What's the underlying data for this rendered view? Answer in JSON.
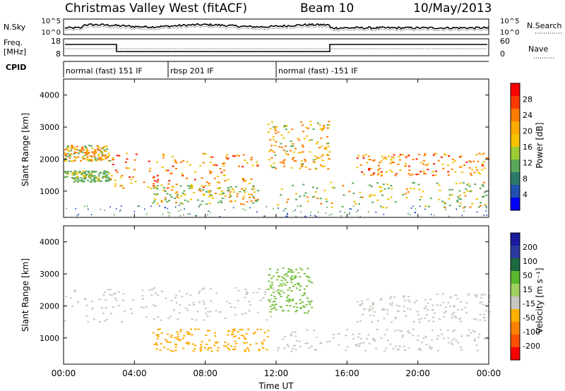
{
  "header": {
    "station": "Christmas Valley West (fitACF)",
    "beam": "Beam 10",
    "date": "10/May/2013"
  },
  "noise_panel": {
    "left_label": "N.Sky",
    "right_label": "N.Search",
    "left_ticks": [
      "10^5",
      "10^0"
    ],
    "right_ticks": [
      "10^5",
      "10^0"
    ]
  },
  "freq_panel": {
    "left_label_1": "Freq.",
    "left_label_2": "[MHz]",
    "right_label": "Nave",
    "left_ticks": [
      "18",
      "8"
    ],
    "right_ticks": [
      "60",
      "0"
    ]
  },
  "cpid": {
    "label": "CPID",
    "segments": [
      {
        "start_h": 0.0,
        "end_h": 5.9,
        "text": "normal (fast) 151 IF"
      },
      {
        "start_h": 5.9,
        "end_h": 12.0,
        "text": "rbsp 201 IF"
      },
      {
        "start_h": 12.0,
        "end_h": 24.0,
        "text": "normal (fast) -151 IF"
      }
    ]
  },
  "power_panel": {
    "ylabel": "Slant Range [km]",
    "colorbar_label": "Power [dB]",
    "colorbar_ticks": [
      "28",
      "24",
      "20",
      "16",
      "12",
      "8",
      "4"
    ],
    "colorbar_colors": [
      "#ff0000",
      "#ff3a00",
      "#ff7a00",
      "#ffaa00",
      "#f7c200",
      "#9ccc33",
      "#5aa85a",
      "#2e7a6a",
      "#2050b0",
      "#0000ff"
    ]
  },
  "velocity_panel": {
    "ylabel": "Slant Range [km]",
    "colorbar_label": "Velocity [m s⁻¹]",
    "colorbar_ticks": [
      "200",
      "100",
      "50",
      "15",
      "-15",
      "-50",
      "-100",
      "-200"
    ],
    "colorbar_colors": [
      "#1a1aa0",
      "#2a3aa0",
      "#1c6a40",
      "#5ab830",
      "#a0d060",
      "#c8c8c0",
      "#ffb000",
      "#ff8000",
      "#ff5000",
      "#ff0000"
    ]
  },
  "x_axis": {
    "label": "Time UT",
    "ticks": [
      "00:00",
      "04:00",
      "08:00",
      "12:00",
      "16:00",
      "20:00",
      "00:00"
    ]
  },
  "y_ticks": [
    "1000",
    "2000",
    "3000",
    "4000"
  ],
  "chart_data": {
    "type": "heatmap",
    "x_range_hours": [
      0,
      24
    ],
    "y_range_km": [
      180,
      4500
    ],
    "power_features": [
      {
        "t0": 0.0,
        "t1": 2.6,
        "r0": 1950,
        "r1": 2450,
        "level": 24
      },
      {
        "t0": 0.0,
        "t1": 2.6,
        "r0": 1300,
        "r1": 1650,
        "level": 18
      },
      {
        "t0": 2.6,
        "t1": 11.0,
        "r0": 1100,
        "r1": 2200,
        "level": 26
      },
      {
        "t0": 5.0,
        "t1": 11.0,
        "r0": 600,
        "r1": 1200,
        "level": 22
      },
      {
        "t0": 11.5,
        "t1": 15.0,
        "r0": 1700,
        "r1": 3200,
        "level": 24
      },
      {
        "t0": 12.0,
        "t1": 24.0,
        "r0": 500,
        "r1": 1300,
        "level": 22
      },
      {
        "t0": 16.5,
        "t1": 24.0,
        "r0": 1500,
        "r1": 2200,
        "level": 26
      }
    ],
    "velocity_features": [
      {
        "t0": 0.0,
        "t1": 12.0,
        "r0": 1500,
        "r1": 2600,
        "v": 0
      },
      {
        "t0": 5.0,
        "t1": 11.5,
        "r0": 600,
        "r1": 1300,
        "v": -50
      },
      {
        "t0": 11.5,
        "t1": 14.0,
        "r0": 1800,
        "r1": 3200,
        "v": 15
      },
      {
        "t0": 12.0,
        "t1": 24.0,
        "r0": 600,
        "r1": 1300,
        "v": 0
      },
      {
        "t0": 16.5,
        "t1": 24.0,
        "r0": 1500,
        "r1": 2400,
        "v": 0
      }
    ]
  }
}
